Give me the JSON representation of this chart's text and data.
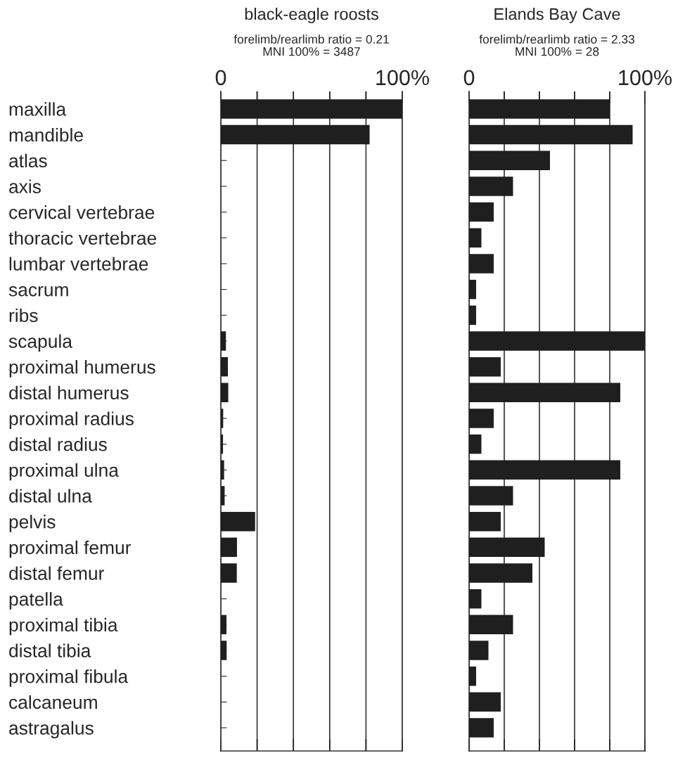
{
  "chart_data": [
    {
      "type": "bar",
      "orientation": "horizontal",
      "title": "black-eagle roosts",
      "subtitle": "forelimb/rearlimb ratio = 0.21\nMNI 100% = 3487",
      "categories": [
        "maxilla",
        "mandible",
        "atlas",
        "axis",
        "cervical vertebrae",
        "thoracic vertebrae",
        "lumbar vertebrae",
        "sacrum",
        "ribs",
        "scapula",
        "proximal humerus",
        "distal humerus",
        "proximal radius",
        "distal radius",
        "proximal ulna",
        "distal ulna",
        "pelvis",
        "proximal femur",
        "distal femur",
        "patella",
        "proximal tibia",
        "distal tibia",
        "proximal fibula",
        "calcaneum",
        "astragalus"
      ],
      "values": [
        100,
        82,
        0,
        0,
        0,
        0,
        0,
        0,
        0,
        2.8,
        3.9,
        4.1,
        1.3,
        1.2,
        1.8,
        2.1,
        18.9,
        8.9,
        8.8,
        0,
        3.1,
        3.2,
        0,
        0,
        0
      ],
      "color": "#1f1f1f",
      "xlim": [
        0,
        100
      ],
      "xticks": [
        0,
        {
          "value": 20,
          "label": null
        },
        {
          "value": 40,
          "label": null
        },
        {
          "value": 60,
          "label": null
        },
        {
          "value": 80,
          "label": null
        },
        {
          "value": 100,
          "label": "100%"
        }
      ],
      "grid": "x"
    },
    {
      "type": "bar",
      "orientation": "horizontal",
      "title": "Elands Bay Cave",
      "subtitle": "forelimb/rearlimb ratio = 2.33\nMNI 100% = 28",
      "categories": [
        null,
        null,
        null,
        null,
        null,
        null,
        null,
        null,
        null,
        null,
        null,
        null,
        null,
        null,
        null,
        null,
        null,
        null,
        null,
        null,
        null,
        null,
        null,
        null,
        null
      ],
      "values": [
        80,
        93,
        46,
        25,
        14,
        7,
        14,
        4,
        4,
        100,
        18,
        86,
        14,
        7,
        86,
        25,
        18,
        43,
        36,
        7,
        25,
        11,
        4,
        18,
        14
      ],
      "color": "#1f1f1f",
      "xlim": [
        0,
        100
      ],
      "xticks": [
        0,
        {
          "value": 20,
          "label": null
        },
        {
          "value": 40,
          "label": null
        },
        {
          "value": 60,
          "label": null
        },
        {
          "value": 80,
          "label": null
        },
        {
          "value": 100,
          "label": "100%"
        }
      ],
      "grid": "x",
      "tick_labels": "x"
    }
  ]
}
